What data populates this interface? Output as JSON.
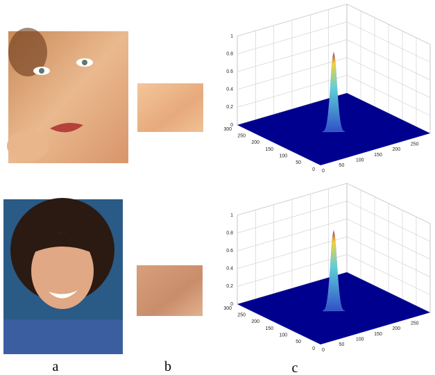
{
  "panels": [
    {
      "zticks": [
        0,
        0.2,
        0.4,
        0.6,
        0.8,
        1
      ],
      "xticks": [
        0,
        50,
        100,
        150,
        200,
        250,
        300
      ],
      "yticks": [
        0,
        50,
        100,
        150,
        200,
        250
      ],
      "xlim": [
        0,
        300
      ],
      "ylim": [
        0,
        300
      ],
      "zlim": [
        0,
        1
      ],
      "peak": 0.87
    },
    {
      "zticks": [
        0,
        0.2,
        0.4,
        0.6,
        0.8,
        1
      ],
      "xticks": [
        0,
        50,
        100,
        150,
        200,
        250,
        300
      ],
      "yticks": [
        0,
        50,
        100,
        150,
        200,
        250
      ],
      "xlim": [
        0,
        300
      ],
      "ylim": [
        0,
        300
      ],
      "zlim": [
        0,
        1
      ],
      "peak": 0.88
    }
  ],
  "labels": [
    "a",
    "b",
    "c"
  ]
}
